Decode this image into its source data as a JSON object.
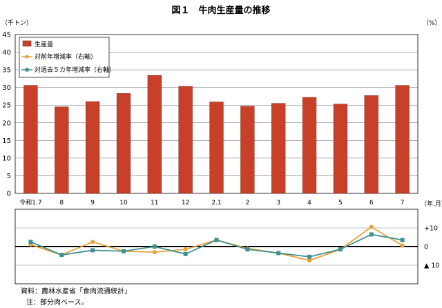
{
  "chart_data": [
    {
      "type": "bar",
      "title": "図１　牛肉生産量の推移",
      "ylabel": "（千トン）",
      "xlabel": "（年.月）",
      "ylim": [
        0,
        45
      ],
      "yticks": [
        0,
        5,
        10,
        15,
        20,
        25,
        30,
        35,
        40,
        45
      ],
      "categories": [
        "令和1.7",
        "8",
        "9",
        "10",
        "11",
        "12",
        "2.1",
        "2",
        "3",
        "4",
        "5",
        "6",
        "7"
      ],
      "series": [
        {
          "name": "生産量",
          "color": "#c8402a",
          "values": [
            30.6,
            24.5,
            26.0,
            28.3,
            33.4,
            30.3,
            25.9,
            24.7,
            25.5,
            27.2,
            25.3,
            27.7,
            30.6
          ]
        }
      ],
      "legend_position": "top-left",
      "grid": true
    },
    {
      "type": "line",
      "ylabel": "（%）",
      "ytick_labels": [
        "+10",
        "0",
        "▲ 10"
      ],
      "yticks": [
        10,
        0,
        -10
      ],
      "ylim": [
        -20,
        20
      ],
      "categories": [
        "令和1.7",
        "8",
        "9",
        "10",
        "11",
        "12",
        "2.1",
        "2",
        "3",
        "4",
        "5",
        "6",
        "7"
      ],
      "series": [
        {
          "name": "対前年増減率（右軸）",
          "color": "#e8a13a",
          "marker": "circle",
          "values": [
            1.0,
            -4.5,
            2.5,
            -2.5,
            -3.0,
            -1.5,
            3.5,
            -1.0,
            -3.5,
            -7.5,
            -1.5,
            10.5,
            0.5
          ]
        },
        {
          "name": "対過去５カ年増減率（右軸）",
          "color": "#3f8f8f",
          "marker": "square",
          "values": [
            2.5,
            -4.5,
            -2.0,
            -2.5,
            0.0,
            -4.0,
            3.5,
            -1.5,
            -3.5,
            -5.5,
            -1.5,
            6.5,
            3.5
          ]
        }
      ]
    }
  ],
  "notes": {
    "source": "資料：農林水産省「食肉流通統計」",
    "note": "注：部分肉ベース。"
  }
}
